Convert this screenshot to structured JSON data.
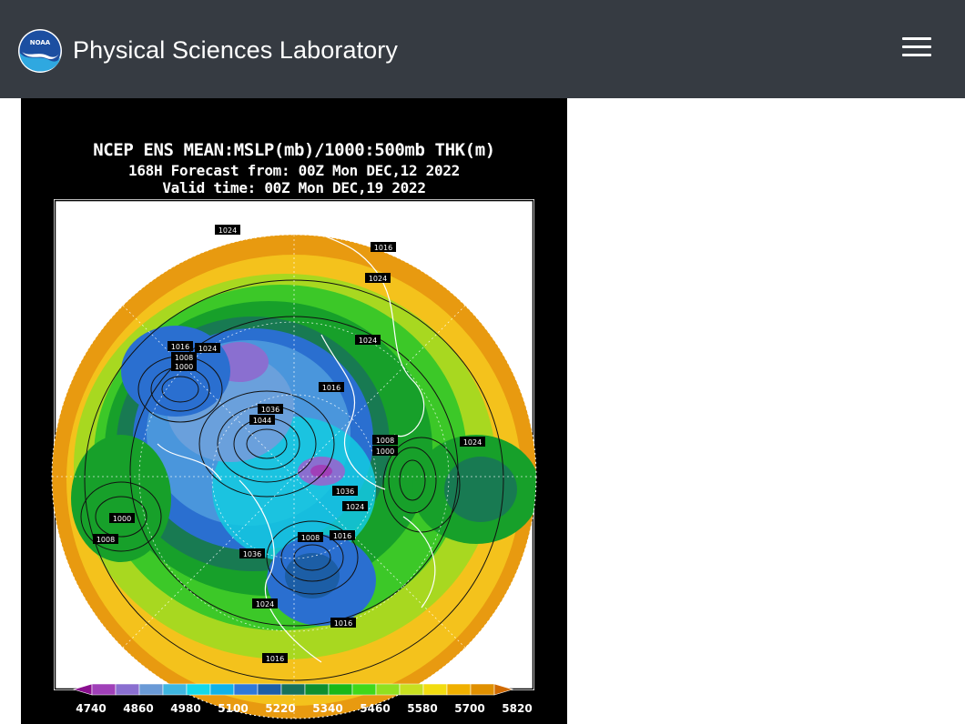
{
  "header": {
    "site_title": "Physical Sciences Laboratory",
    "logo_icon": "noaa-logo-icon",
    "logo_text": "NOAA",
    "menu_icon": "hamburger-menu-icon",
    "background_color": "#363b42"
  },
  "map": {
    "title_line1": "NCEP ENS MEAN:MSLP(mb)/1000:500mb THK(m)",
    "title_line2": "168H Forecast from: 00Z Mon DEC,12 2022",
    "title_line3": "Valid time: 00Z Mon DEC,19 2022",
    "isobar_labels": [
      "1024",
      "1016",
      "1024",
      "1016",
      "1024",
      "1008",
      "1000",
      "1024",
      "1016",
      "1036",
      "1044",
      "1008",
      "1000",
      "1024",
      "1036",
      "1024",
      "1000",
      "1008",
      "1008",
      "1016",
      "1036",
      "1024",
      "1016",
      "1016"
    ],
    "legend": {
      "labels": [
        "4740",
        "4860",
        "4980",
        "5100",
        "5220",
        "5340",
        "5460",
        "5580",
        "5700",
        "5820"
      ],
      "colors": [
        "#8a0f8f",
        "#a040b8",
        "#8a6fd0",
        "#6a9ad6",
        "#3fb6e0",
        "#14d8e8",
        "#11b2e8",
        "#2f78d8",
        "#1c5ea6",
        "#17715a",
        "#0f8f2e",
        "#18b818",
        "#40d81a",
        "#90e020",
        "#c8e020",
        "#f2dc10",
        "#f0b000",
        "#e09000",
        "#d06a00"
      ]
    }
  }
}
